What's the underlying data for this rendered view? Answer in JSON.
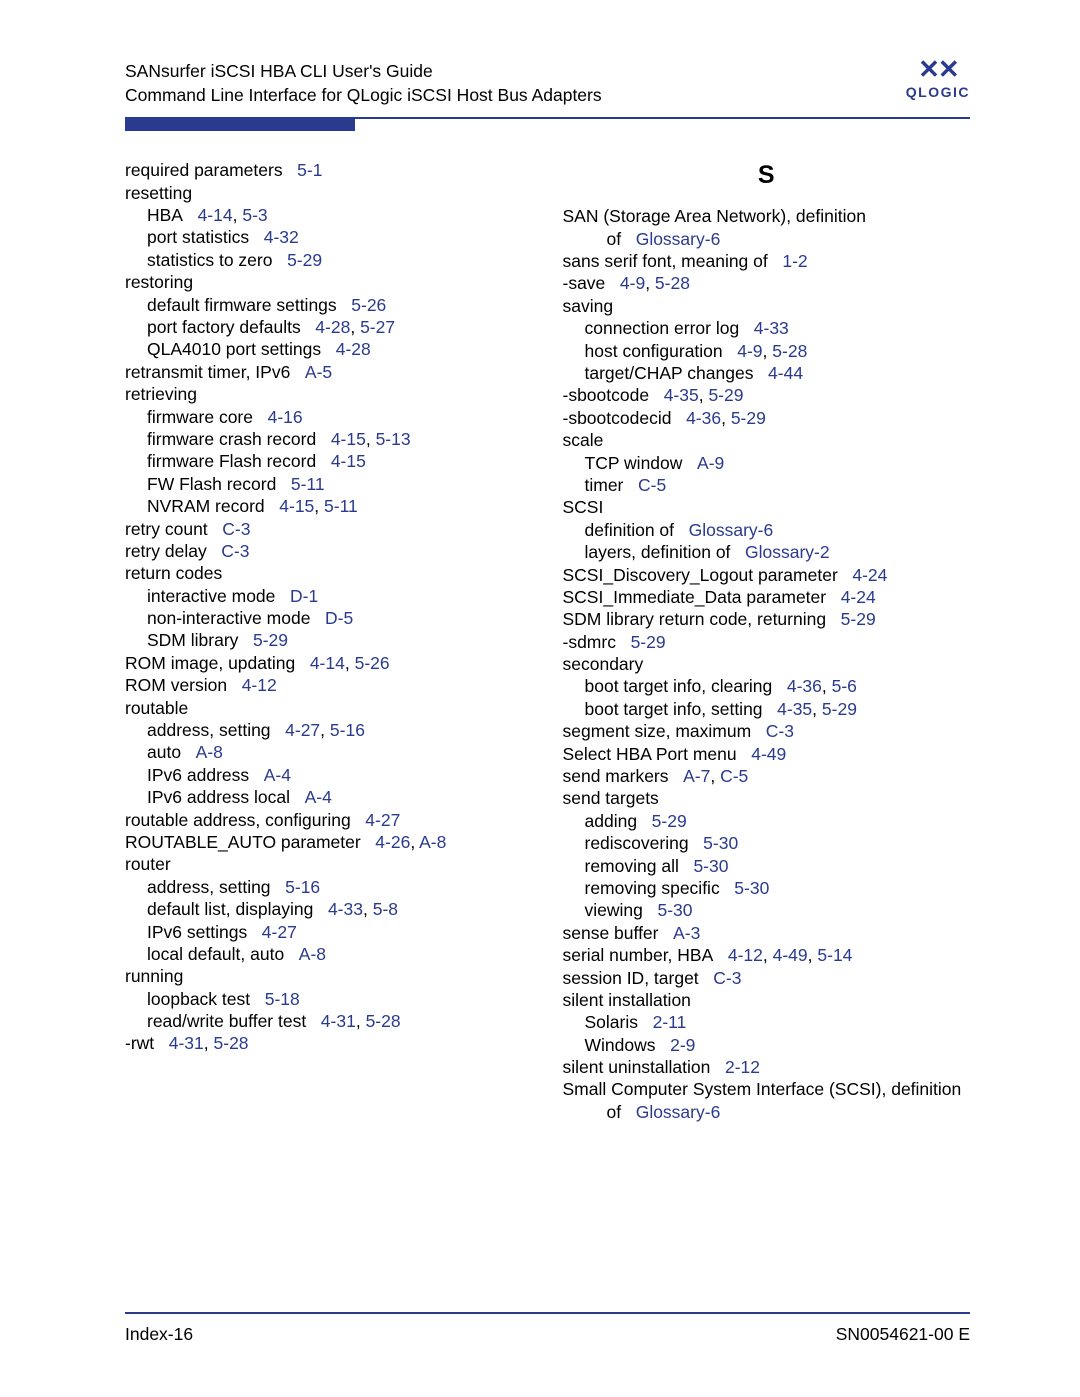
{
  "header": {
    "line1": "SANsurfer iSCSI HBA CLI User's Guide",
    "line2": "Command Line Interface for QLogic iSCSI Host Bus Adapters",
    "logo_mark": "✕✕",
    "logo_text": "QLOGIC"
  },
  "colors": {
    "brand": "#2a3a8f",
    "text": "#000000",
    "background": "#ffffff"
  },
  "footer": {
    "left": "Index-16",
    "right": "SN0054621-00  E"
  },
  "left_col": [
    {
      "t": "required parameters",
      "refs": [
        "5-1"
      ],
      "i": 0
    },
    {
      "t": "resetting",
      "i": 0
    },
    {
      "t": "HBA",
      "refs": [
        "4-14",
        "5-3"
      ],
      "i": 1
    },
    {
      "t": "port statistics",
      "refs": [
        "4-32"
      ],
      "i": 1
    },
    {
      "t": "statistics to zero",
      "refs": [
        "5-29"
      ],
      "i": 1
    },
    {
      "t": "restoring",
      "i": 0
    },
    {
      "t": "default firmware settings",
      "refs": [
        "5-26"
      ],
      "i": 1
    },
    {
      "t": "port factory defaults",
      "refs": [
        "4-28",
        "5-27"
      ],
      "i": 1
    },
    {
      "t": "QLA4010 port settings",
      "refs": [
        "4-28"
      ],
      "i": 1
    },
    {
      "t": "retransmit timer, IPv6",
      "refs": [
        "A-5"
      ],
      "i": 0
    },
    {
      "t": "retrieving",
      "i": 0
    },
    {
      "t": "firmware core",
      "refs": [
        "4-16"
      ],
      "i": 1
    },
    {
      "t": "firmware crash record",
      "refs": [
        "4-15",
        "5-13"
      ],
      "i": 1
    },
    {
      "t": "firmware Flash record",
      "refs": [
        "4-15"
      ],
      "i": 1
    },
    {
      "t": "FW Flash record",
      "refs": [
        "5-11"
      ],
      "i": 1
    },
    {
      "t": "NVRAM record",
      "refs": [
        "4-15",
        "5-11"
      ],
      "i": 1
    },
    {
      "t": "retry count",
      "refs": [
        "C-3"
      ],
      "i": 0
    },
    {
      "t": "retry delay",
      "refs": [
        "C-3"
      ],
      "i": 0
    },
    {
      "t": "return codes",
      "i": 0
    },
    {
      "t": "interactive mode",
      "refs": [
        "D-1"
      ],
      "i": 1
    },
    {
      "t": "non-interactive mode",
      "refs": [
        "D-5"
      ],
      "i": 1
    },
    {
      "t": "SDM library",
      "refs": [
        "5-29"
      ],
      "i": 1
    },
    {
      "t": "ROM image, updating",
      "refs": [
        "4-14",
        "5-26"
      ],
      "i": 0
    },
    {
      "t": "ROM version",
      "refs": [
        "4-12"
      ],
      "i": 0
    },
    {
      "t": "routable",
      "i": 0
    },
    {
      "t": "address, setting",
      "refs": [
        "4-27",
        "5-16"
      ],
      "i": 1
    },
    {
      "t": "auto",
      "refs": [
        "A-8"
      ],
      "i": 1
    },
    {
      "t": "IPv6 address",
      "refs": [
        "A-4"
      ],
      "i": 1
    },
    {
      "t": "IPv6 address local",
      "refs": [
        "A-4"
      ],
      "i": 1
    },
    {
      "t": "routable address, configuring",
      "refs": [
        "4-27"
      ],
      "i": 0
    },
    {
      "t": "ROUTABLE_AUTO parameter",
      "refs": [
        "4-26",
        "A-8"
      ],
      "i": 0
    },
    {
      "t": "router",
      "i": 0
    },
    {
      "t": "address, setting",
      "refs": [
        "5-16"
      ],
      "i": 1
    },
    {
      "t": "default list, displaying",
      "refs": [
        "4-33",
        "5-8"
      ],
      "i": 1
    },
    {
      "t": "IPv6 settings",
      "refs": [
        "4-27"
      ],
      "i": 1
    },
    {
      "t": "local default, auto",
      "refs": [
        "A-8"
      ],
      "i": 1
    },
    {
      "t": "running",
      "i": 0
    },
    {
      "t": "loopback test",
      "refs": [
        "5-18"
      ],
      "i": 1
    },
    {
      "t": "read/write buffer test",
      "refs": [
        "4-31",
        "5-28"
      ],
      "i": 1
    },
    {
      "t": "-rwt",
      "refs": [
        "4-31",
        "5-28"
      ],
      "i": 0
    }
  ],
  "right_section_letter": "S",
  "right_col": [
    {
      "t": "SAN (Storage Area Network), definition of",
      "refs": [
        "Glossary-6"
      ],
      "i": 0,
      "wrap": 2
    },
    {
      "t": "sans serif font, meaning of",
      "refs": [
        "1-2"
      ],
      "i": 0
    },
    {
      "t": "-save",
      "refs": [
        "4-9",
        "5-28"
      ],
      "i": 0
    },
    {
      "t": "saving",
      "i": 0
    },
    {
      "t": "connection error log",
      "refs": [
        "4-33"
      ],
      "i": 1
    },
    {
      "t": "host configuration",
      "refs": [
        "4-9",
        "5-28"
      ],
      "i": 1
    },
    {
      "t": "target/CHAP changes",
      "refs": [
        "4-44"
      ],
      "i": 1
    },
    {
      "t": "-sbootcode",
      "refs": [
        "4-35",
        "5-29"
      ],
      "i": 0
    },
    {
      "t": "-sbootcodecid",
      "refs": [
        "4-36",
        "5-29"
      ],
      "i": 0
    },
    {
      "t": "scale",
      "i": 0
    },
    {
      "t": "TCP window",
      "refs": [
        "A-9"
      ],
      "i": 1
    },
    {
      "t": "timer",
      "refs": [
        "C-5"
      ],
      "i": 1
    },
    {
      "t": "SCSI",
      "i": 0
    },
    {
      "t": "definition of",
      "refs": [
        "Glossary-6"
      ],
      "i": 1
    },
    {
      "t": "layers, definition of",
      "refs": [
        "Glossary-2"
      ],
      "i": 1
    },
    {
      "t": "SCSI_Discovery_Logout parameter",
      "refs": [
        "4-24"
      ],
      "i": 0
    },
    {
      "t": "SCSI_Immediate_Data parameter",
      "refs": [
        "4-24"
      ],
      "i": 0
    },
    {
      "t": "SDM library return code, returning",
      "refs": [
        "5-29"
      ],
      "i": 0
    },
    {
      "t": "-sdmrc",
      "refs": [
        "5-29"
      ],
      "i": 0
    },
    {
      "t": "secondary",
      "i": 0
    },
    {
      "t": "boot target info, clearing",
      "refs": [
        "4-36",
        "5-6"
      ],
      "i": 1
    },
    {
      "t": "boot target info, setting",
      "refs": [
        "4-35",
        "5-29"
      ],
      "i": 1
    },
    {
      "t": "segment size, maximum",
      "refs": [
        "C-3"
      ],
      "i": 0
    },
    {
      "t": "Select HBA Port menu",
      "refs": [
        "4-49"
      ],
      "i": 0
    },
    {
      "t": "send markers",
      "refs": [
        "A-7",
        "C-5"
      ],
      "i": 0
    },
    {
      "t": "send targets",
      "i": 0
    },
    {
      "t": "adding",
      "refs": [
        "5-29"
      ],
      "i": 1
    },
    {
      "t": "rediscovering",
      "refs": [
        "5-30"
      ],
      "i": 1
    },
    {
      "t": "removing all",
      "refs": [
        "5-30"
      ],
      "i": 1
    },
    {
      "t": "removing specific",
      "refs": [
        "5-30"
      ],
      "i": 1
    },
    {
      "t": "viewing",
      "refs": [
        "5-30"
      ],
      "i": 1
    },
    {
      "t": "sense buffer",
      "refs": [
        "A-3"
      ],
      "i": 0
    },
    {
      "t": "serial number, HBA",
      "refs": [
        "4-12",
        "4-49",
        "5-14"
      ],
      "i": 0
    },
    {
      "t": "session ID, target",
      "refs": [
        "C-3"
      ],
      "i": 0
    },
    {
      "t": "silent installation",
      "i": 0
    },
    {
      "t": "Solaris",
      "refs": [
        "2-11"
      ],
      "i": 1
    },
    {
      "t": "Windows",
      "refs": [
        "2-9"
      ],
      "i": 1
    },
    {
      "t": "silent uninstallation",
      "refs": [
        "2-12"
      ],
      "i": 0
    },
    {
      "t": "Small Computer System Interface (SCSI), definition of",
      "refs": [
        "Glossary-6"
      ],
      "i": 0,
      "wrap": 2
    }
  ]
}
